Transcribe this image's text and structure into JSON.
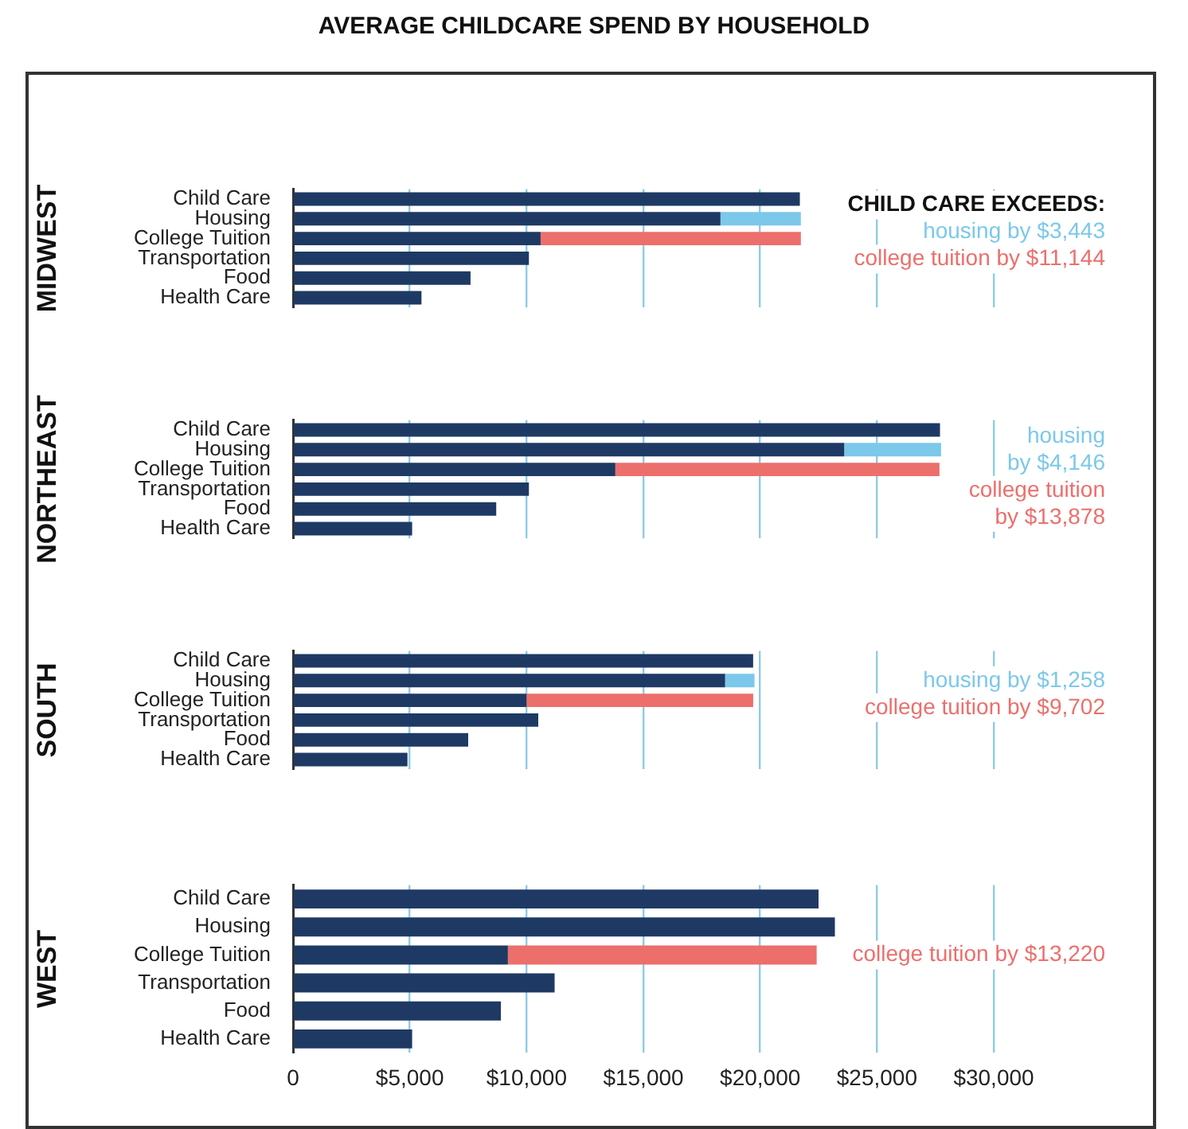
{
  "chart_data": [
    {
      "type": "bar",
      "orientation": "horizontal",
      "stacked": true,
      "title": "AVERAGE CHILDCARE SPEND BY HOUSEHOLD",
      "ylabel": "MIDWEST",
      "categories": [
        "Child Care",
        "Housing",
        "College Tuition",
        "Transportation",
        "Food",
        "Health Care"
      ],
      "series": [
        {
          "color": "#1e3a64",
          "values": [
            21700,
            18300,
            10600,
            10100,
            7600,
            5500
          ]
        },
        {
          "color": "#7cc8ea",
          "values": [
            null,
            3443,
            null,
            null,
            null,
            null
          ]
        },
        {
          "color": "#ec6f6c",
          "values": [
            null,
            null,
            11144,
            null,
            null,
            null
          ]
        }
      ],
      "xlim": [
        0,
        30000
      ],
      "xticks": [
        0,
        5000,
        10000,
        15000,
        20000,
        25000,
        30000
      ],
      "grid": "x",
      "tick_labels": "y",
      "annotations": [
        "CHILD CARE EXCEEDS:",
        "housing by $3,443",
        "college tuition by $11,144"
      ]
    },
    {
      "type": "bar",
      "orientation": "horizontal",
      "stacked": true,
      "ylabel": "NORTHEAST",
      "categories": [
        "Child Care",
        "Housing",
        "College Tuition",
        "Transportation",
        "Food",
        "Health Care"
      ],
      "series": [
        {
          "color": "#1e3a64",
          "values": [
            27700,
            23600,
            13800,
            10100,
            8700,
            5100
          ]
        },
        {
          "color": "#7cc8ea",
          "values": [
            null,
            4146,
            null,
            null,
            null,
            null
          ]
        },
        {
          "color": "#ec6f6c",
          "values": [
            null,
            null,
            13878,
            null,
            null,
            null
          ]
        }
      ],
      "xlim": [
        0,
        30000
      ],
      "xticks": [
        0,
        5000,
        10000,
        15000,
        20000,
        25000,
        30000
      ],
      "grid": "x",
      "tick_labels": "y",
      "annotations": [
        "housing\nby $4,146",
        "college tuition\nby $13,878"
      ]
    },
    {
      "type": "bar",
      "orientation": "horizontal",
      "stacked": true,
      "ylabel": "SOUTH",
      "categories": [
        "Child Care",
        "Housing",
        "College Tuition",
        "Transportation",
        "Food",
        "Health Care"
      ],
      "series": [
        {
          "color": "#1e3a64",
          "values": [
            19700,
            18500,
            10000,
            10500,
            7500,
            4900
          ]
        },
        {
          "color": "#7cc8ea",
          "values": [
            null,
            1258,
            null,
            null,
            null,
            null
          ]
        },
        {
          "color": "#ec6f6c",
          "values": [
            null,
            null,
            9702,
            null,
            null,
            null
          ]
        }
      ],
      "xlim": [
        0,
        30000
      ],
      "xticks": [
        0,
        5000,
        10000,
        15000,
        20000,
        25000,
        30000
      ],
      "grid": "x",
      "tick_labels": "y",
      "annotations": [
        "housing by $1,258",
        "college tuition by $9,702"
      ]
    },
    {
      "type": "bar",
      "orientation": "horizontal",
      "stacked": true,
      "ylabel": "WEST",
      "categories": [
        "Child Care",
        "Housing",
        "College Tuition",
        "Transportation",
        "Food",
        "Health Care"
      ],
      "series": [
        {
          "color": "#1e3a64",
          "values": [
            22500,
            23200,
            9200,
            11200,
            8900,
            5100
          ]
        },
        {
          "color": "#ec6f6c",
          "values": [
            null,
            null,
            13220,
            null,
            null,
            null
          ]
        }
      ],
      "xlim": [
        0,
        30000
      ],
      "xticks": [
        0,
        {
          "value": 5000,
          "label": "$5,000"
        },
        {
          "value": 10000,
          "label": "$10,000"
        },
        {
          "value": 15000,
          "label": "$15,000"
        },
        {
          "value": 20000,
          "label": "$20,000"
        },
        {
          "value": 25000,
          "label": "$25,000"
        },
        {
          "value": 30000,
          "label": "$30,000"
        }
      ],
      "grid": "x",
      "annotations": [
        "college tuition by $13,220"
      ]
    }
  ]
}
